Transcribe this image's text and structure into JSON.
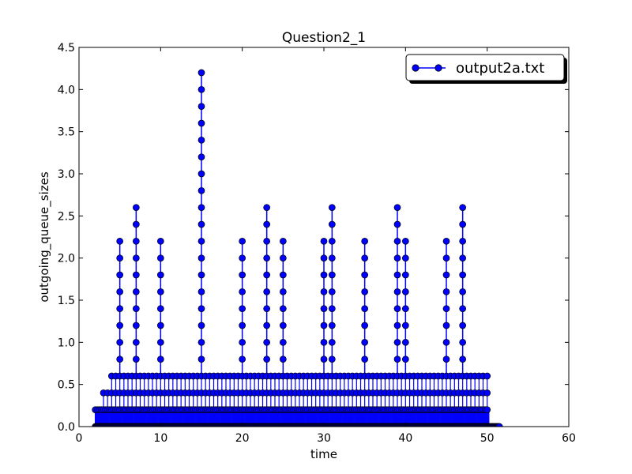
{
  "chart_data": {
    "type": "line",
    "title": "Question2_1",
    "xlabel": "time",
    "ylabel": "outgoing_queue_sizes",
    "xlim": [
      0,
      60
    ],
    "ylim": [
      0,
      4.5
    ],
    "x_ticks": [
      0,
      10,
      20,
      30,
      40,
      50,
      60
    ],
    "x_tick_labels": [
      "0",
      "10",
      "20",
      "30",
      "40",
      "50",
      "60"
    ],
    "y_ticks": [
      0,
      0.5,
      1.0,
      1.5,
      2.0,
      2.5,
      3.0,
      3.5,
      4.0,
      4.5
    ],
    "y_tick_labels": [
      "0.0",
      "0.5",
      "1.0",
      "1.5",
      "2.0",
      "2.5",
      "3.0",
      "3.5",
      "4.0",
      "4.5"
    ],
    "grid": false,
    "legend_position": "top-right",
    "series_color": "#0000ff",
    "marker": "circle",
    "series": [
      {
        "name": "output2a.txt",
        "baseline_start": 2.0,
        "baseline_end": 51.5,
        "baseline_level": 0.2,
        "band_040_range": [
          3.0,
          50.0
        ],
        "band_060_range": [
          4.0,
          50.0
        ],
        "spikes": [
          {
            "x": 5,
            "y": 2.2
          },
          {
            "x": 7,
            "y": 2.6
          },
          {
            "x": 10,
            "y": 2.2
          },
          {
            "x": 15,
            "y": 4.2
          },
          {
            "x": 20,
            "y": 2.2
          },
          {
            "x": 23,
            "y": 2.6
          },
          {
            "x": 25,
            "y": 2.2
          },
          {
            "x": 30,
            "y": 2.2
          },
          {
            "x": 31,
            "y": 2.6
          },
          {
            "x": 35,
            "y": 2.2
          },
          {
            "x": 39,
            "y": 2.6
          },
          {
            "x": 40,
            "y": 2.2
          },
          {
            "x": 45,
            "y": 2.2
          },
          {
            "x": 47,
            "y": 2.6
          }
        ]
      }
    ]
  }
}
